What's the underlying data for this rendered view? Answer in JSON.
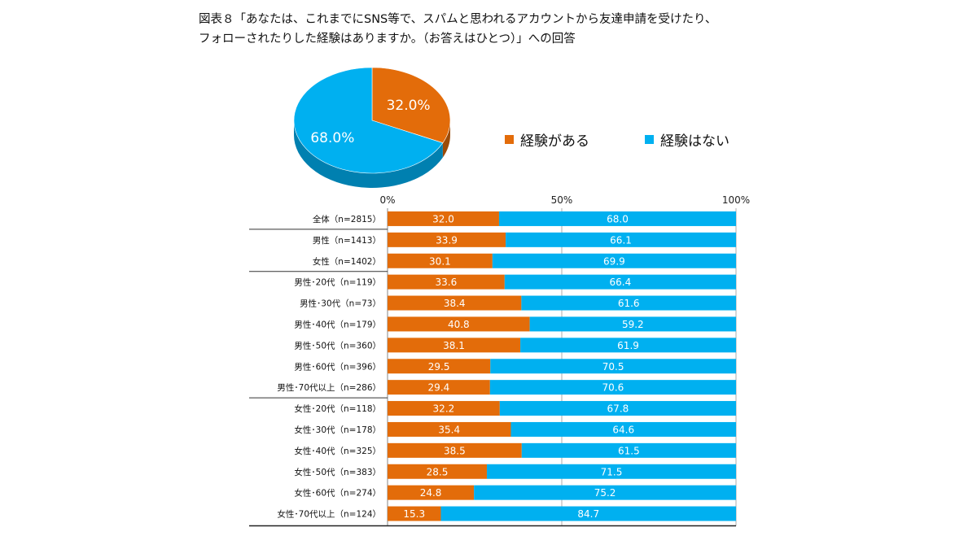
{
  "title_lines": [
    "図表８「あなたは、これまでにSNS等で、スパムと思われるアカウントから友達申請を受けたり、",
    "フォローされたりした経験はありますか。（お答えはひとつ）」への回答"
  ],
  "colors": {
    "yes": "#e36c0a",
    "no": "#00b0f0",
    "yes_side": "#9c4b08",
    "no_side": "#0080b0"
  },
  "legend": {
    "yes": "経験がある",
    "no": "経験はない"
  },
  "chart_data": [
    {
      "type": "pie",
      "labels": [
        "経験がある",
        "経験はない"
      ],
      "values": [
        32.0,
        68.0
      ],
      "data_labels": [
        "32.0%",
        "68.0%"
      ]
    },
    {
      "type": "bar",
      "stacked": true,
      "orientation": "horizontal",
      "x_ticks": [
        "0%",
        "50%",
        "100%"
      ],
      "xlim": [
        0,
        100
      ],
      "categories": [
        "全体（n=2815）",
        "男性（n=1413）",
        "女性（n=1402）",
        "男性･20代（n=119）",
        "男性･30代（n=73）",
        "男性･40代（n=179）",
        "男性･50代（n=360）",
        "男性･60代（n=396）",
        "男性･70代以上（n=286）",
        "女性･20代（n=118）",
        "女性･30代（n=178）",
        "女性･40代（n=325）",
        "女性･50代（n=383）",
        "女性･60代（n=274）",
        "女性･70代以上（n=124）"
      ],
      "series": [
        {
          "name": "経験がある",
          "values": [
            32.0,
            33.9,
            30.1,
            33.6,
            38.4,
            40.8,
            38.1,
            29.5,
            29.4,
            32.2,
            35.4,
            38.5,
            28.5,
            24.8,
            15.3
          ]
        },
        {
          "name": "経験はない",
          "values": [
            68.0,
            66.1,
            69.9,
            66.4,
            61.6,
            59.2,
            61.9,
            70.5,
            70.6,
            67.8,
            64.6,
            61.5,
            71.5,
            75.2,
            84.7
          ]
        }
      ],
      "data_labels": [
        [
          "32.0",
          "33.9",
          "30.1",
          "33.6",
          "38.4",
          "40.8",
          "38.1",
          "29.5",
          "29.4",
          "32.2",
          "35.4",
          "38.5",
          "28.5",
          "24.8",
          "15.3"
        ],
        [
          "68.0",
          "66.1",
          "69.9",
          "66.4",
          "61.6",
          "59.2",
          "61.9",
          "70.5",
          "70.6",
          "67.8",
          "64.6",
          "61.5",
          "71.5",
          "75.2",
          "84.7"
        ]
      ],
      "group_separators_after": [
        0,
        2,
        8
      ]
    }
  ]
}
